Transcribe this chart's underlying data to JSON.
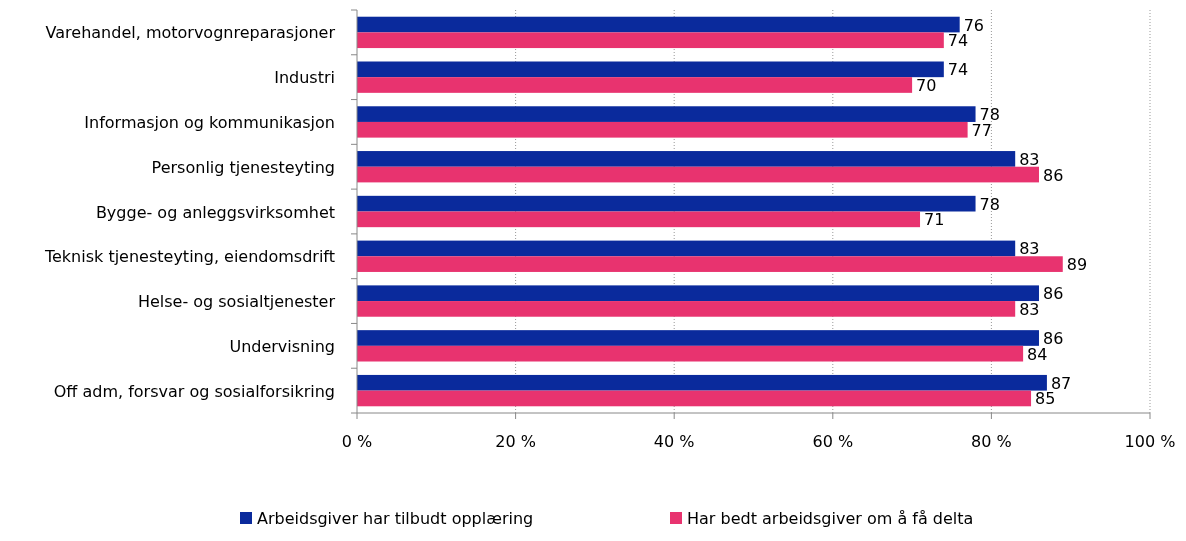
{
  "chart_data": {
    "type": "bar",
    "orientation": "horizontal",
    "categories": [
      "Varehandel, motorvognreparasjoner",
      "Industri",
      "Informasjon og kommunikasjon",
      "Personlig tjenesteyting",
      "Bygge- og anleggsvirksomhet",
      "Teknisk tjenesteyting, eiendomsdrift",
      "Helse- og sosialtjenester",
      "Undervisning",
      "Off adm, forsvar og sosialforsikring"
    ],
    "series": [
      {
        "name": "Arbeidsgiver har tilbudt opplæring",
        "color": "#0a2a9c",
        "values": [
          76,
          74,
          78,
          83,
          78,
          83,
          86,
          86,
          87
        ]
      },
      {
        "name": "Har bedt arbeidsgiver om å få delta",
        "color": "#e8336f",
        "values": [
          74,
          70,
          77,
          86,
          71,
          89,
          83,
          84,
          85
        ]
      }
    ],
    "xlim": [
      0,
      100
    ],
    "xticks": [
      {
        "value": 0,
        "label": "0 %"
      },
      {
        "value": 20,
        "label": "20 %"
      },
      {
        "value": 40,
        "label": "40 %"
      },
      {
        "value": 60,
        "label": "60 %"
      },
      {
        "value": 80,
        "label": "80 %"
      },
      {
        "value": 100,
        "label": "100 %"
      }
    ],
    "grid": "x",
    "data_labels": true,
    "legend": "bottom"
  }
}
